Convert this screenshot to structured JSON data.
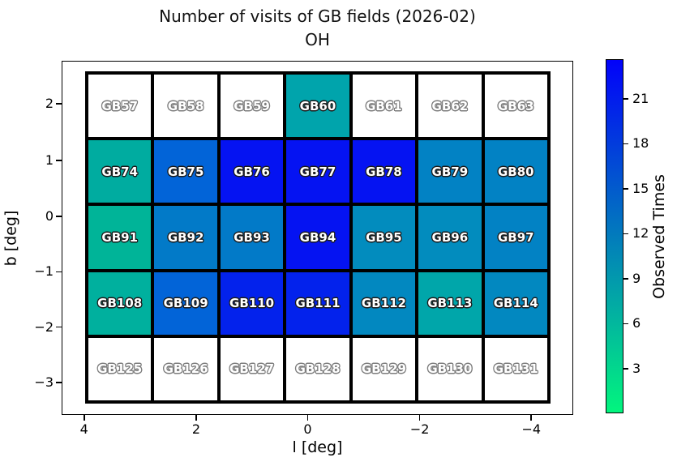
{
  "figure": {
    "title_line1": "Number of visits of GB fields (2026-02)",
    "title_line2": "OH",
    "xlabel": "l [deg]",
    "ylabel": "b [deg]",
    "colorbar_label": "Observed Times"
  },
  "chart_data": {
    "type": "heatmap",
    "title": "Number of visits of GB fields (2026-02)",
    "subtitle": "OH",
    "xlabel": "l [deg]",
    "ylabel": "b [deg]",
    "x_axis_reversed": true,
    "x_tick_labels": [
      "4",
      "2",
      "0",
      "−2",
      "−4"
    ],
    "y_tick_labels": [
      "2",
      "1",
      "0",
      "−1",
      "−2",
      "−3"
    ],
    "grid_on": false,
    "colorbar": {
      "label": "Observed Times",
      "ticks": [
        21,
        18,
        15,
        12,
        9,
        6,
        3
      ],
      "top_color": "#0202fa",
      "bottom_color": "#02f57e",
      "colormap": "winter_r"
    },
    "empty_cell_color": "#ffffff",
    "note": "observed_times values estimated from cell color vs colorbar; white cells have no visits",
    "rows": [
      [
        {
          "label": "GB57",
          "color": "#ffffff",
          "observed_times": null
        },
        {
          "label": "GB58",
          "color": "#ffffff",
          "observed_times": null
        },
        {
          "label": "GB59",
          "color": "#ffffff",
          "observed_times": null
        },
        {
          "label": "GB60",
          "color": "#00a4ac",
          "observed_times": 9
        },
        {
          "label": "GB61",
          "color": "#ffffff",
          "observed_times": null
        },
        {
          "label": "GB62",
          "color": "#ffffff",
          "observed_times": null
        },
        {
          "label": "GB63",
          "color": "#ffffff",
          "observed_times": null
        }
      ],
      [
        {
          "label": "GB74",
          "color": "#00aca0",
          "observed_times": 8
        },
        {
          "label": "GB75",
          "color": "#0264d8",
          "observed_times": 15
        },
        {
          "label": "GB76",
          "color": "#0513f2",
          "observed_times": 22
        },
        {
          "label": "GB77",
          "color": "#0513f2",
          "observed_times": 22
        },
        {
          "label": "GB78",
          "color": "#0513f2",
          "observed_times": 22
        },
        {
          "label": "GB79",
          "color": "#0282c4",
          "observed_times": 12
        },
        {
          "label": "GB80",
          "color": "#0282c4",
          "observed_times": 12
        }
      ],
      [
        {
          "label": "GB91",
          "color": "#00b498",
          "observed_times": 7
        },
        {
          "label": "GB92",
          "color": "#027ac8",
          "observed_times": 13
        },
        {
          "label": "GB93",
          "color": "#027ac8",
          "observed_times": 13
        },
        {
          "label": "GB94",
          "color": "#0513f2",
          "observed_times": 22
        },
        {
          "label": "GB95",
          "color": "#028cbe",
          "observed_times": 11
        },
        {
          "label": "GB96",
          "color": "#028cbe",
          "observed_times": 11
        },
        {
          "label": "GB97",
          "color": "#0282c4",
          "observed_times": 12
        }
      ],
      [
        {
          "label": "GB108",
          "color": "#00b09e",
          "observed_times": 8
        },
        {
          "label": "GB109",
          "color": "#0264d8",
          "observed_times": 15
        },
        {
          "label": "GB110",
          "color": "#0322ec",
          "observed_times": 20
        },
        {
          "label": "GB111",
          "color": "#0322ec",
          "observed_times": 20
        },
        {
          "label": "GB112",
          "color": "#0288c0",
          "observed_times": 11
        },
        {
          "label": "GB113",
          "color": "#00a6aa",
          "observed_times": 9
        },
        {
          "label": "GB114",
          "color": "#0288c0",
          "observed_times": 11
        }
      ],
      [
        {
          "label": "GB125",
          "color": "#ffffff",
          "observed_times": null
        },
        {
          "label": "GB126",
          "color": "#ffffff",
          "observed_times": null
        },
        {
          "label": "GB127",
          "color": "#ffffff",
          "observed_times": null
        },
        {
          "label": "GB128",
          "color": "#ffffff",
          "observed_times": null
        },
        {
          "label": "GB129",
          "color": "#ffffff",
          "observed_times": null
        },
        {
          "label": "GB130",
          "color": "#ffffff",
          "observed_times": null
        },
        {
          "label": "GB131",
          "color": "#ffffff",
          "observed_times": null
        }
      ]
    ]
  }
}
